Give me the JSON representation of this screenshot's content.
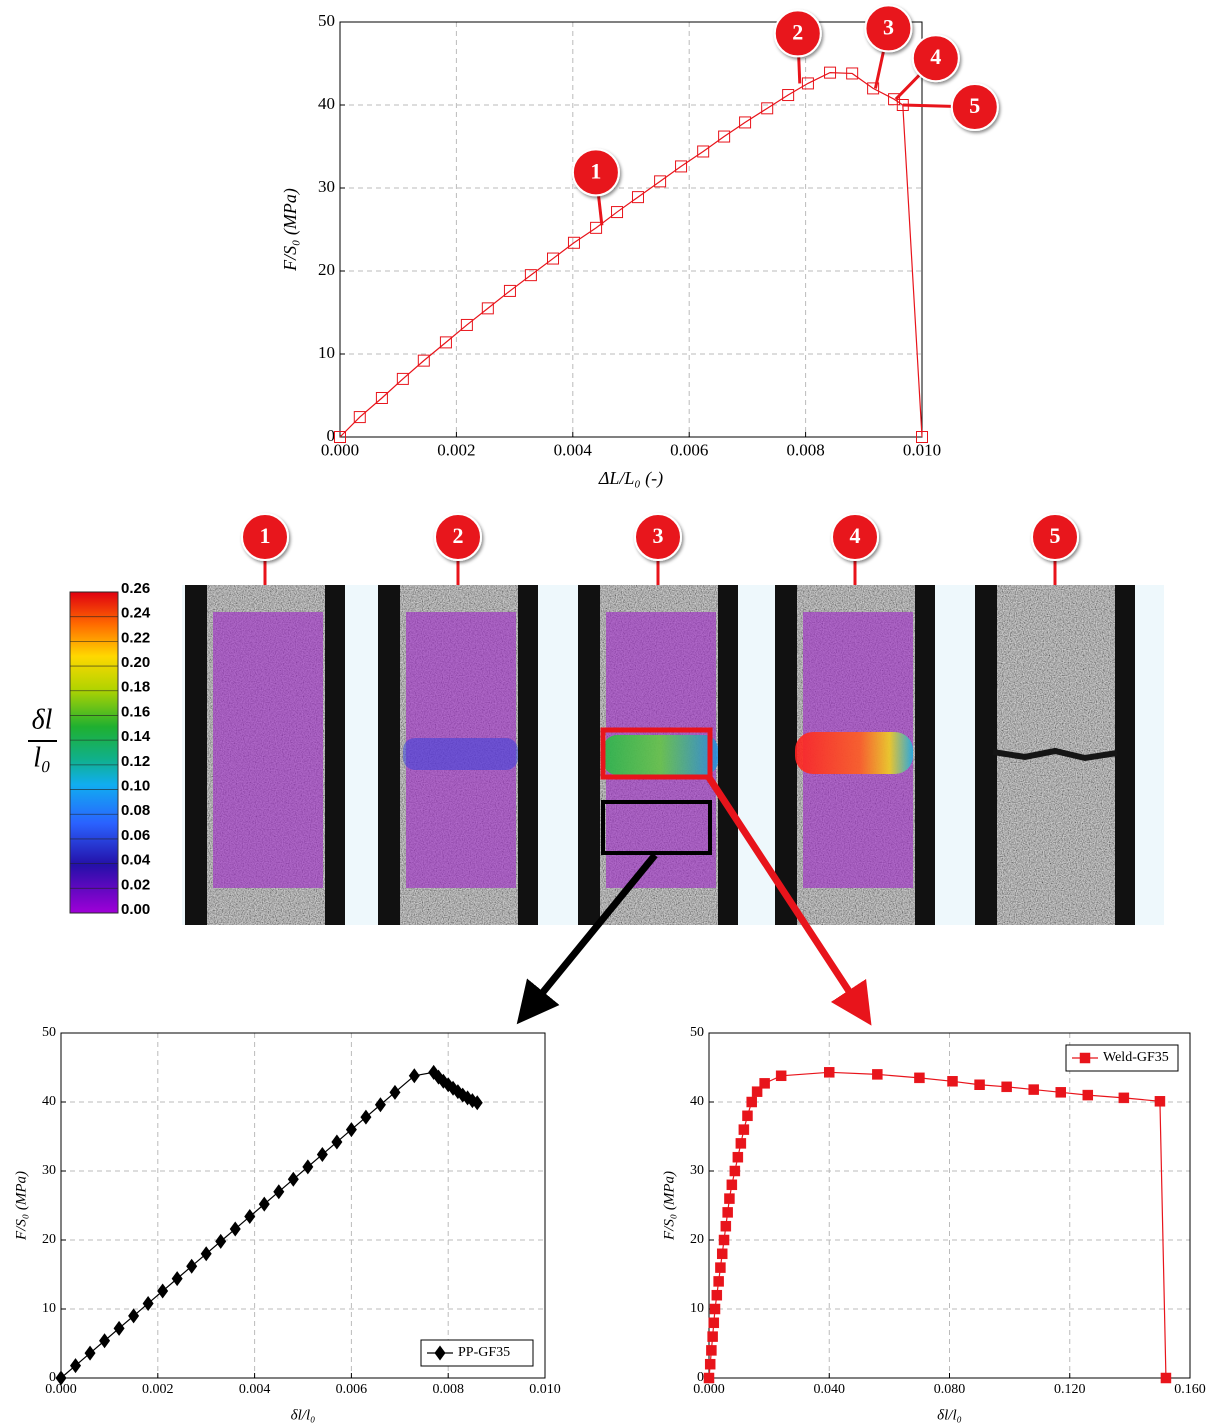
{
  "chart_data": [
    {
      "type": "line",
      "marker": "square-open",
      "x_label": "ΔL/L₀ (-)",
      "y_label": "F/S₀ (MPa)",
      "x": [
        0,
        0.00034,
        0.00072,
        0.00108,
        0.00144,
        0.00182,
        0.00218,
        0.00254,
        0.00292,
        0.00328,
        0.00366,
        0.00402,
        0.0044,
        0.00476,
        0.00512,
        0.0055,
        0.00586,
        0.00624,
        0.0066,
        0.00696,
        0.00734,
        0.0077,
        0.00804,
        0.00842,
        0.0088,
        0.00916,
        0.00952,
        0.00967,
        0.01
      ],
      "series": [
        {
          "color": "#e8141b",
          "values": [
            0,
            2.4,
            4.7,
            7.0,
            9.2,
            11.4,
            13.5,
            15.5,
            17.6,
            19.5,
            21.5,
            23.4,
            25.2,
            27.1,
            28.9,
            30.8,
            32.6,
            34.4,
            36.2,
            37.9,
            39.6,
            41.2,
            42.6,
            43.9,
            43.8,
            42.0,
            40.7,
            40.0,
            0
          ]
        }
      ],
      "xlim": [
        0,
        0.01
      ],
      "ylim": [
        0,
        50
      ],
      "xticks": [
        {
          "value": 0,
          "label": "0.000"
        },
        {
          "value": 0.002,
          "label": "0.002"
        },
        {
          "value": 0.004,
          "label": "0.004"
        },
        {
          "value": 0.006,
          "label": "0.006"
        },
        {
          "value": 0.008,
          "label": "0.008"
        },
        {
          "value": 0.01,
          "label": "0.010"
        }
      ],
      "yticks": [
        0,
        10,
        20,
        30,
        40,
        50
      ],
      "grid": true,
      "annotations": [
        {
          "text": "1",
          "x": 0.0045,
          "y": 25.5
        },
        {
          "text": "2",
          "x": 0.0079,
          "y": 42.6
        },
        {
          "text": "3",
          "x": 0.0092,
          "y": 42
        },
        {
          "text": "4",
          "x": 0.00955,
          "y": 40.7
        },
        {
          "text": "5",
          "x": 0.00967,
          "y": 40
        }
      ]
    },
    {
      "type": "line",
      "marker": "diamond",
      "legend": "lower right",
      "x_label": "δl/l₀",
      "y_label": "F/S₀ (MPa)",
      "x": [
        0,
        0.0003,
        0.0006,
        0.0009,
        0.0012,
        0.0015,
        0.0018,
        0.0021,
        0.0024,
        0.0027,
        0.003,
        0.0033,
        0.0036,
        0.0039,
        0.0042,
        0.0045,
        0.0048,
        0.0051,
        0.0054,
        0.0057,
        0.006,
        0.0063,
        0.0066,
        0.0069,
        0.0073,
        0.0077,
        0.0078,
        0.0079,
        0.008,
        0.0081,
        0.0082,
        0.0083,
        0.0084,
        0.0085,
        0.0086
      ],
      "series": [
        {
          "name": "PP-GF35",
          "color": "#000000",
          "values": [
            0,
            1.8,
            3.6,
            5.4,
            7.2,
            9,
            10.8,
            12.6,
            14.4,
            16.2,
            18,
            19.8,
            21.6,
            23.4,
            25.2,
            27,
            28.8,
            30.6,
            32.4,
            34.2,
            36,
            37.8,
            39.6,
            41.4,
            43.8,
            44.3,
            43.6,
            43,
            42.5,
            42,
            41.5,
            41,
            40.6,
            40.2,
            39.9
          ]
        }
      ],
      "xlim": [
        0,
        0.01
      ],
      "ylim": [
        0,
        50
      ],
      "xticks": [
        {
          "value": 0,
          "label": "0.000"
        },
        {
          "value": 0.002,
          "label": "0.002"
        },
        {
          "value": 0.004,
          "label": "0.004"
        },
        {
          "value": 0.006,
          "label": "0.006"
        },
        {
          "value": 0.008,
          "label": "0.008"
        },
        {
          "value": 0.01,
          "label": "0.010"
        }
      ],
      "yticks": [
        0,
        10,
        20,
        30,
        40,
        50
      ],
      "grid": true
    },
    {
      "type": "line",
      "marker": "square",
      "legend": "upper right",
      "x_label": "δl/l₀",
      "y_label": "F/S₀ (MPa)",
      "x": [
        0,
        0.0004,
        0.0008,
        0.0012,
        0.0016,
        0.002,
        0.0026,
        0.0032,
        0.0038,
        0.0044,
        0.005,
        0.0056,
        0.0062,
        0.0068,
        0.0076,
        0.0086,
        0.0096,
        0.0106,
        0.0116,
        0.0128,
        0.0142,
        0.016,
        0.0185,
        0.024,
        0.04,
        0.056,
        0.07,
        0.081,
        0.09,
        0.099,
        0.108,
        0.117,
        0.126,
        0.138,
        0.15,
        0.152
      ],
      "series": [
        {
          "name": "Weld-GF35",
          "color": "#e8141b",
          "values": [
            0,
            2,
            4,
            6,
            8,
            10,
            12,
            14,
            16,
            18,
            20,
            22,
            24,
            26,
            28,
            30,
            32,
            34,
            36,
            38,
            40,
            41.5,
            42.7,
            43.8,
            44.3,
            44,
            43.5,
            43,
            42.5,
            42.2,
            41.8,
            41.4,
            41,
            40.6,
            40.1,
            0
          ]
        }
      ],
      "xlim": [
        0,
        0.16
      ],
      "ylim": [
        0,
        50
      ],
      "xticks": [
        {
          "value": 0,
          "label": "0.000"
        },
        {
          "value": 0.04,
          "label": "0.040"
        },
        {
          "value": 0.08,
          "label": "0.080"
        },
        {
          "value": 0.12,
          "label": "0.120"
        },
        {
          "value": 0.16,
          "label": "0.160"
        }
      ],
      "yticks": [
        0,
        10,
        20,
        30,
        40,
        50
      ],
      "grid": true
    }
  ],
  "colorbar": {
    "numerator": "δl",
    "denominator": "l₀",
    "range": [
      0,
      0.26
    ],
    "ticks": [
      {
        "value": 0,
        "label": "0.00"
      },
      {
        "value": 0.02,
        "label": "0.02"
      },
      {
        "value": 0.04,
        "label": "0.04"
      },
      {
        "value": 0.06,
        "label": "0.06"
      },
      {
        "value": 0.08,
        "label": "0.08"
      },
      {
        "value": 0.1,
        "label": "0.10"
      },
      {
        "value": 0.12,
        "label": "0.12"
      },
      {
        "value": 0.14,
        "label": "0.14"
      },
      {
        "value": 0.16,
        "label": "0.16"
      },
      {
        "value": 0.18,
        "label": "0.18"
      },
      {
        "value": 0.2,
        "label": "0.20"
      },
      {
        "value": 0.22,
        "label": "0.22"
      },
      {
        "value": 0.24,
        "label": "0.24"
      },
      {
        "value": 0.26,
        "label": "0.26"
      }
    ]
  },
  "snapshots": [
    "1",
    "2",
    "3",
    "4",
    "5"
  ]
}
